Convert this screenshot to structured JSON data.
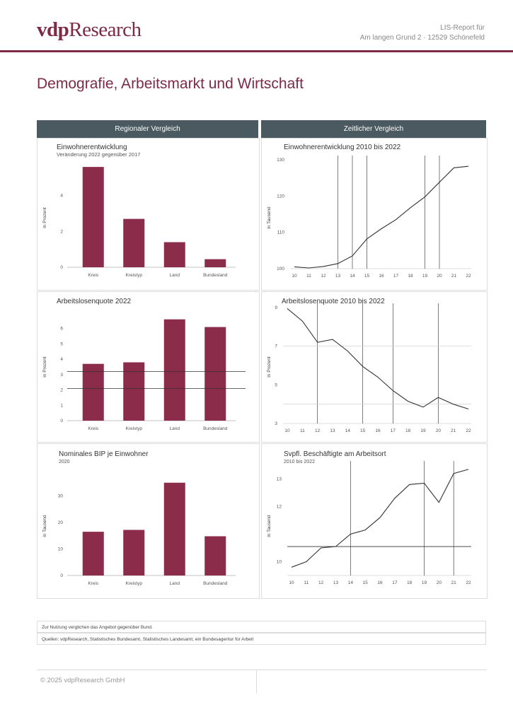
{
  "header": {
    "logo_prefix": "vdp",
    "logo_suffix": "Research",
    "report_title": "LIS-Report für",
    "report_address": "Am langen Grund 2 · 12529 Schönefeld"
  },
  "page_title": "Demografie, Arbeitsmarkt und Wirtschaft",
  "columns": {
    "regional": "Regionaler Vergleich",
    "temporal": "Zeitlicher Vergleich"
  },
  "colors": {
    "bar": "#8b2c4b",
    "brand": "#7d2b44",
    "header_bg": "#4a5a60"
  },
  "charts": {
    "population_regional": {
      "title": "Einwohnerentwicklung",
      "subtitle": "Veränderung 2022 gegenüber 2017",
      "ylabel": "in Prozent"
    },
    "population_temporal": {
      "title": "Einwohnerentwicklung 2010 bis 2022",
      "ylabel": "in Tausend"
    },
    "unemployment_regional": {
      "title": "Arbeitslosenquote 2022",
      "ylabel": "in Prozent"
    },
    "unemployment_temporal": {
      "title": "Arbeitslosenquote 2010 bis 2022",
      "ylabel": "in Prozent"
    },
    "gdp_regional": {
      "title": "Nominales BIP je Einwohner",
      "subtitle": "2020",
      "ylabel": "in Tausend"
    },
    "employment_temporal": {
      "title": "Svpfl. Beschäftigte am Arbeitsort",
      "subtitle": "2010 bis 2022",
      "ylabel": "in Tausend"
    }
  },
  "chart_data": [
    {
      "type": "bar",
      "title": "Einwohnerentwicklung",
      "categories": [
        "Kreis",
        "Kreistyp",
        "Land",
        "Bundesland"
      ],
      "values": [
        5.6,
        2.7,
        1.4,
        0.45
      ],
      "ylabel": "in Prozent",
      "ylim": [
        0,
        6
      ],
      "yticks": [
        0,
        2,
        4
      ]
    },
    {
      "type": "line",
      "title": "Einwohnerentwicklung 2010 bis 2022",
      "x": [
        "10",
        "11",
        "12",
        "13",
        "14",
        "15",
        "16",
        "17",
        "18",
        "19",
        "20",
        "21",
        "22"
      ],
      "values": [
        100.5,
        100.2,
        100.6,
        101.4,
        103.5,
        108.2,
        111.0,
        113.5,
        116.8,
        119.8,
        123.8,
        127.8,
        128.2
      ],
      "ylabel": "in Tausend",
      "ylim": [
        100,
        130
      ],
      "yticks": [
        100,
        110,
        120,
        130
      ],
      "vlines": [
        "13",
        "14",
        "15",
        "19",
        "20"
      ]
    },
    {
      "type": "bar",
      "title": "Arbeitslosenquote 2022",
      "categories": [
        "Kreis",
        "Kreistyp",
        "Land",
        "Bundesland"
      ],
      "values": [
        3.7,
        3.8,
        6.6,
        6.1
      ],
      "ylabel": "in Prozent",
      "ylim": [
        0,
        7
      ],
      "yticks": [
        0,
        1,
        2,
        3,
        4,
        5,
        6
      ],
      "hlines": [
        3.2,
        2.1
      ]
    },
    {
      "type": "line",
      "title": "Arbeitslosenquote 2010 bis 2022",
      "x": [
        "10",
        "11",
        "12",
        "13",
        "14",
        "15",
        "16",
        "17",
        "18",
        "19",
        "20",
        "21",
        "22"
      ],
      "values": [
        8.95,
        8.3,
        7.2,
        7.35,
        6.75,
        5.95,
        5.4,
        4.7,
        4.15,
        3.85,
        4.35,
        4.0,
        3.75
      ],
      "ylabel": "in Prozent",
      "ylim": [
        3,
        9
      ],
      "yticks": [
        3,
        5,
        7,
        9
      ],
      "vlines": [
        "12",
        "15",
        "17",
        "20"
      ],
      "hlines": [
        7,
        4
      ]
    },
    {
      "type": "bar",
      "title": "Nominales BIP je Einwohner",
      "categories": [
        "Kreis",
        "Kreistyp",
        "Land",
        "Bundesland"
      ],
      "values": [
        16.5,
        17.2,
        35.0,
        14.8
      ],
      "ylabel": "in Tausend",
      "ylim": [
        0,
        40
      ],
      "yticks": [
        0,
        10,
        20,
        30
      ]
    },
    {
      "type": "line",
      "title": "Svpfl. Beschäftigte am Arbeitsort",
      "x": [
        "10",
        "11",
        "12",
        "13",
        "14",
        "15",
        "16",
        "17",
        "18",
        "19",
        "20",
        "21",
        "22"
      ],
      "values": [
        9.8,
        10.0,
        10.5,
        10.55,
        11.0,
        11.15,
        11.6,
        12.3,
        12.8,
        12.85,
        12.15,
        13.2,
        13.35
      ],
      "ylabel": "in Tausend",
      "ylim": [
        9.5,
        13.5
      ],
      "yticks": [
        10,
        12,
        13
      ],
      "vlines": [
        "14",
        "19",
        "21"
      ],
      "hlines": [
        10.55
      ]
    }
  ],
  "notes": {
    "line1": "Zur Nutzung verglichen das Angebot gegenüber Bund.",
    "line2": "Quellen: vdpResearch, Statistisches Bundesamt, Statistisches Landesamt, ein Bundesagentur für Arbeit"
  },
  "footer": {
    "copyright": "© 2025 vdpResearch GmbH"
  }
}
